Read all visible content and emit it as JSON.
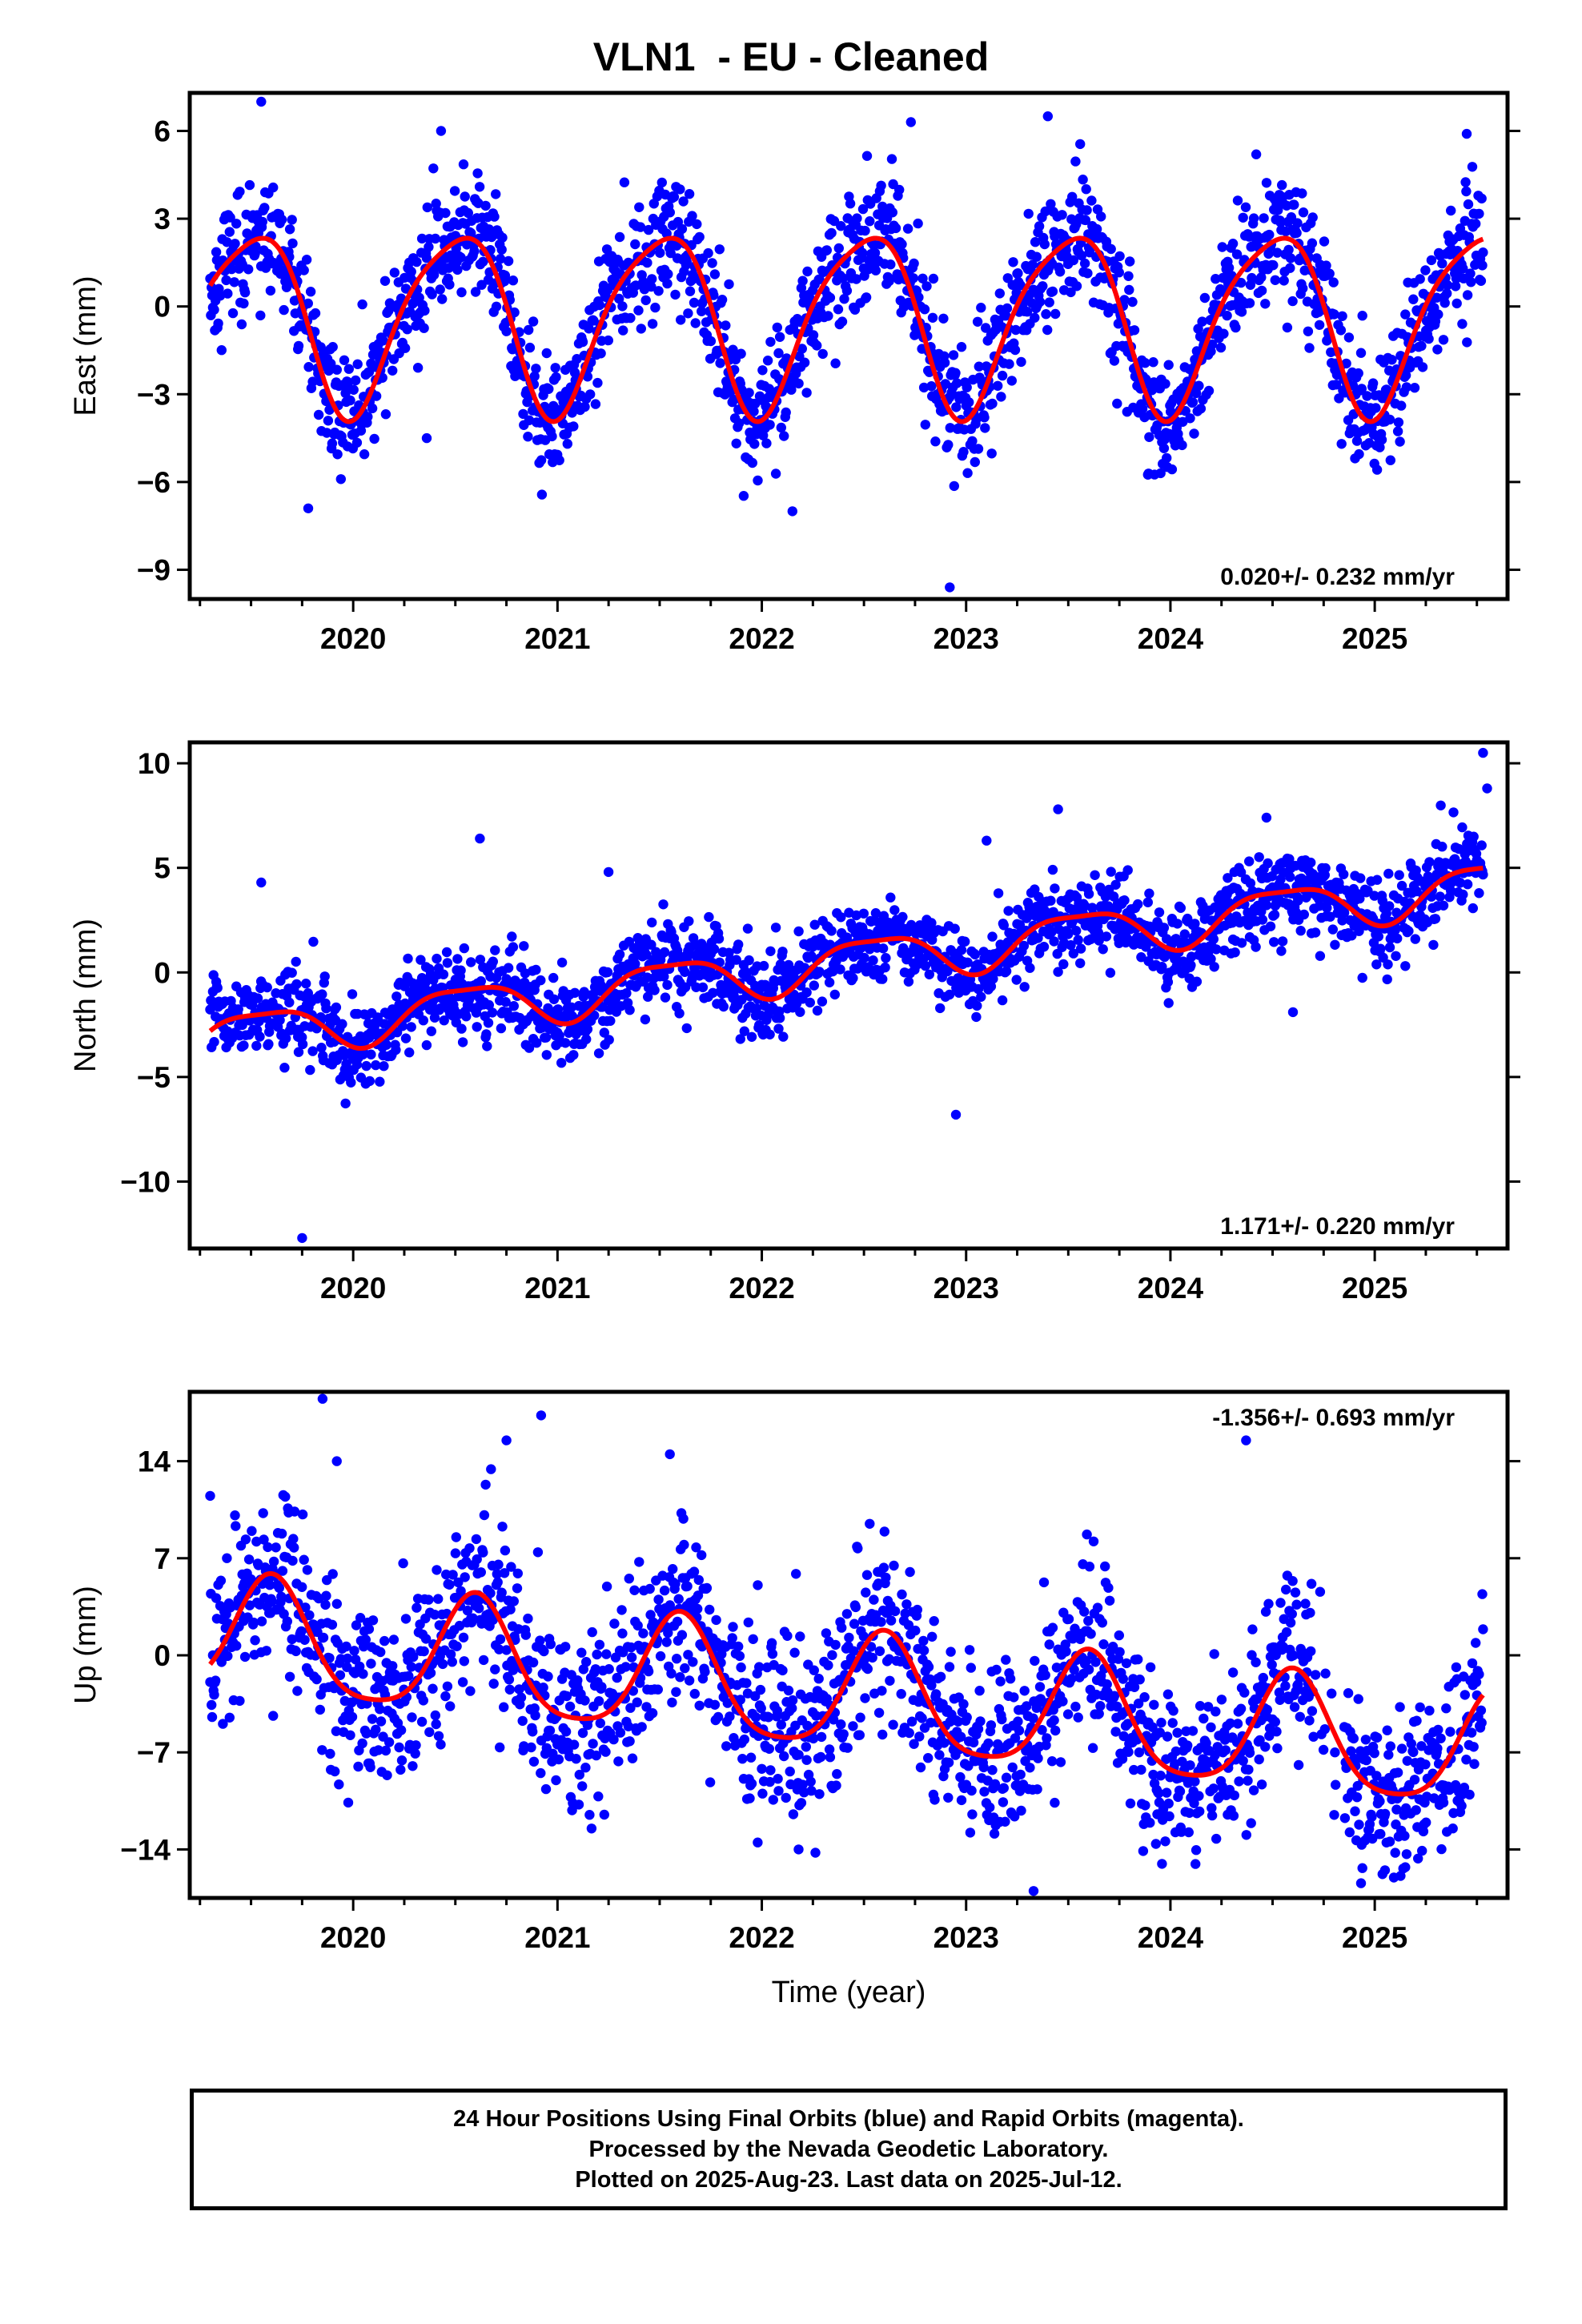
{
  "title": "VLN1  - EU - Cleaned",
  "colors": {
    "points": "#0000ff",
    "fit": "#ff0000",
    "frame": "#000000"
  },
  "footer": {
    "line1": "24 Hour Positions Using Final Orbits (blue) and Rapid Orbits (magenta).",
    "line2": "Processed by the Nevada Geodetic Laboratory.",
    "line3": "Plotted on 2025-Aug-23. Last data on 2025-Jul-12."
  },
  "chart_data": [
    {
      "type": "scatter",
      "ylabel": "East (mm)",
      "xlabel": "",
      "rate_label": "0.020+/- 0.232 mm/yr",
      "rate_position": "bottom-right",
      "xlim": [
        2019.2,
        2025.65
      ],
      "ylim": [
        -10,
        7.3
      ],
      "xticks": [
        2020,
        2021,
        2022,
        2023,
        2024,
        2025
      ],
      "yticks": [
        6,
        3,
        0,
        -3,
        -6,
        -9
      ],
      "start_year": 2019.3,
      "end_year": 2025.53,
      "seasonal_fit": {
        "offset": -0.4,
        "trend_mm_per_yr": 0.0,
        "annual_amplitude": 3.05,
        "annual_peak": 0.5,
        "semiannual_amplitude": 0.55,
        "semiannual_peak": 0.2
      },
      "scatter_sd": 1.1,
      "outliers": [
        [
          2019.55,
          7.0
        ],
        [
          2020.43,
          6.0
        ],
        [
          2020.36,
          -4.5
        ],
        [
          2022.73,
          6.3
        ],
        [
          2023.4,
          6.5
        ],
        [
          2022.15,
          -7.0
        ],
        [
          2022.92,
          -9.6
        ],
        [
          2024.42,
          5.2
        ],
        [
          2025.45,
          5.9
        ],
        [
          2019.78,
          -6.9
        ]
      ],
      "fit_curve": {
        "x": [
          2019.3,
          2019.5,
          2019.7,
          2019.9,
          2020.1,
          2020.3,
          2020.5,
          2020.7,
          2020.9,
          2021.1,
          2021.3,
          2021.5,
          2021.7,
          2021.9,
          2022.1,
          2022.3,
          2022.5,
          2022.7,
          2022.9,
          2023.1,
          2023.3,
          2023.5,
          2023.7,
          2023.9,
          2024.1,
          2024.3,
          2024.5,
          2024.7,
          2024.9,
          2025.1,
          2025.3,
          2025.53
        ],
        "y": [
          1.9,
          2.4,
          0.0,
          -3.3,
          -2.6,
          0.5,
          2.5,
          0.0,
          -3.3,
          -2.6,
          0.5,
          2.5,
          0.0,
          -3.3,
          -2.6,
          0.5,
          2.5,
          0.0,
          -3.3,
          -2.6,
          0.5,
          2.5,
          0.0,
          -3.3,
          -2.6,
          0.5,
          2.5,
          0.0,
          -3.3,
          -2.6,
          0.5,
          2.4
        ]
      }
    },
    {
      "type": "scatter",
      "ylabel": "North (mm)",
      "xlabel": "",
      "rate_label": "1.171+/- 0.220 mm/yr",
      "rate_position": "bottom-right",
      "xlim": [
        2019.2,
        2025.65
      ],
      "ylim": [
        -13.2,
        11
      ],
      "xticks": [
        2020,
        2021,
        2022,
        2023,
        2024,
        2025
      ],
      "yticks": [
        10,
        5,
        0,
        -5,
        -10
      ],
      "start_year": 2019.3,
      "end_year": 2025.53,
      "seasonal_fit": {
        "offset": -3.1,
        "trend_mm_per_yr": 1.17,
        "annual_amplitude": 1.1,
        "annual_peak": 0.55,
        "semiannual_amplitude": 0.3,
        "semiannual_peak": 0.3
      },
      "scatter_sd": 1.0,
      "outliers": [
        [
          2019.55,
          4.3
        ],
        [
          2020.62,
          6.4
        ],
        [
          2021.25,
          4.8
        ],
        [
          2022.95,
          -6.8
        ],
        [
          2023.1,
          6.3
        ],
        [
          2023.45,
          7.8
        ],
        [
          2024.47,
          7.4
        ],
        [
          2025.53,
          10.5
        ],
        [
          2025.55,
          8.8
        ],
        [
          2019.75,
          -12.7
        ],
        [
          2024.6,
          -1.9
        ]
      ],
      "fit_curve": {
        "x": [
          2019.3,
          2019.5,
          2019.75,
          2020.0,
          2020.25,
          2020.5,
          2020.75,
          2021.0,
          2021.25,
          2021.5,
          2021.75,
          2022.0,
          2022.25,
          2022.5,
          2022.75,
          2023.0,
          2023.25,
          2023.5,
          2023.75,
          2024.0,
          2024.25,
          2024.5,
          2024.75,
          2025.0,
          2025.25,
          2025.53
        ],
        "y": [
          -3.1,
          -1.6,
          -4.0,
          -3.8,
          -3.5,
          -0.4,
          -2.8,
          -2.6,
          -2.0,
          0.8,
          -1.6,
          -1.3,
          -0.8,
          1.9,
          -0.5,
          -0.2,
          0.4,
          3.0,
          0.6,
          0.9,
          1.5,
          4.2,
          1.8,
          2.1,
          2.7,
          5.4
        ]
      }
    },
    {
      "type": "scatter",
      "ylabel": "Up (mm)",
      "xlabel": "Time (year)",
      "rate_label": "-1.356+/- 0.693 mm/yr",
      "rate_position": "top-right",
      "xlim": [
        2019.2,
        2025.65
      ],
      "ylim": [
        -17.5,
        19
      ],
      "xticks": [
        2020,
        2021,
        2022,
        2023,
        2024,
        2025
      ],
      "yticks": [
        14,
        7,
        0,
        -7,
        -14
      ],
      "start_year": 2019.3,
      "end_year": 2025.53,
      "seasonal_fit": {
        "offset": 1.3,
        "trend_mm_per_yr": -1.36,
        "annual_amplitude": 4.2,
        "annual_peak": 0.6,
        "semiannual_amplitude": 0.8,
        "semiannual_peak": 0.1
      },
      "scatter_sd": 3.2,
      "outliers": [
        [
          2019.85,
          18.5
        ],
        [
          2020.92,
          17.3
        ],
        [
          2020.75,
          15.5
        ],
        [
          2021.55,
          14.5
        ],
        [
          2024.37,
          15.5
        ],
        [
          2023.33,
          -17.0
        ],
        [
          2025.05,
          -15.5
        ],
        [
          2019.3,
          11.5
        ],
        [
          2019.92,
          14.0
        ],
        [
          2022.18,
          -14.0
        ],
        [
          2021.98,
          -13.5
        ]
      ],
      "fit_curve": {
        "x": [
          2019.3,
          2019.6,
          2019.9,
          2020.25,
          2020.6,
          2020.9,
          2021.25,
          2021.6,
          2021.9,
          2022.25,
          2022.6,
          2022.9,
          2023.25,
          2023.6,
          2023.9,
          2024.25,
          2024.6,
          2024.9,
          2025.25,
          2025.53
        ],
        "y": [
          1.3,
          7.6,
          3.0,
          -0.9,
          6.2,
          1.6,
          -2.3,
          4.8,
          0.2,
          -3.7,
          3.4,
          -1.2,
          -5.1,
          2.1,
          -2.6,
          -6.4,
          0.7,
          -4.0,
          -7.7,
          -1.3
        ]
      }
    }
  ]
}
